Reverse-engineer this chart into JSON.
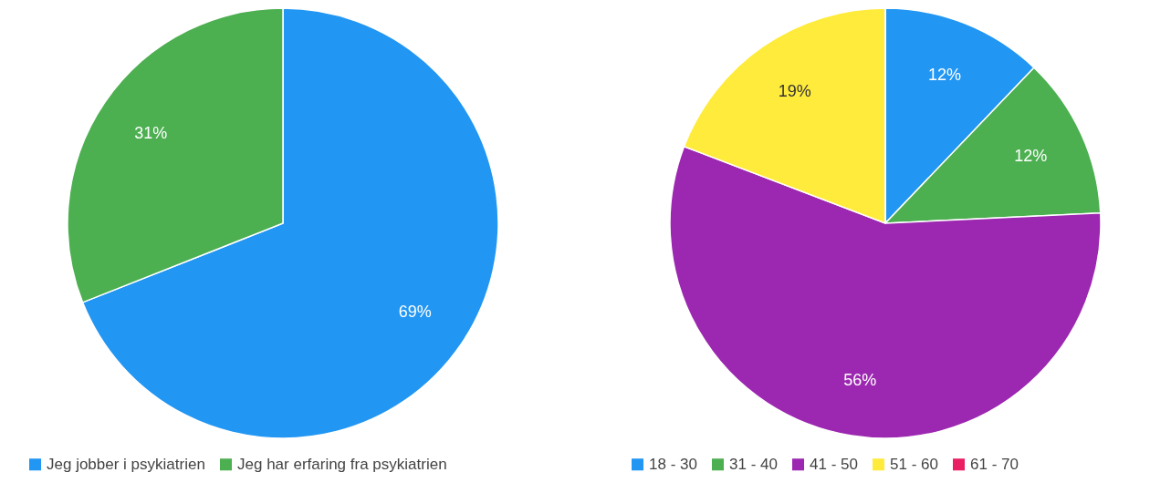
{
  "chart_data": [
    {
      "type": "pie",
      "categories": [
        "Jeg jobber i psykiatrien",
        "Jeg har erfaring fra psykiatrien"
      ],
      "values": [
        69,
        31
      ],
      "colors": [
        "#2196f3",
        "#4caf50"
      ],
      "value_labels": [
        "69%",
        "31%"
      ],
      "legend": "bottom"
    },
    {
      "type": "pie",
      "categories": [
        "18 - 30",
        "31 - 40",
        "41 - 50",
        "51 - 60",
        "61 - 70"
      ],
      "values": [
        12,
        12,
        56,
        19,
        0
      ],
      "colors": [
        "#2196f3",
        "#4caf50",
        "#9c27b0",
        "#ffeb3b",
        "#e91e63"
      ],
      "value_labels": [
        "12%",
        "12%",
        "56%",
        "19%",
        null
      ],
      "legend": "bottom"
    }
  ]
}
